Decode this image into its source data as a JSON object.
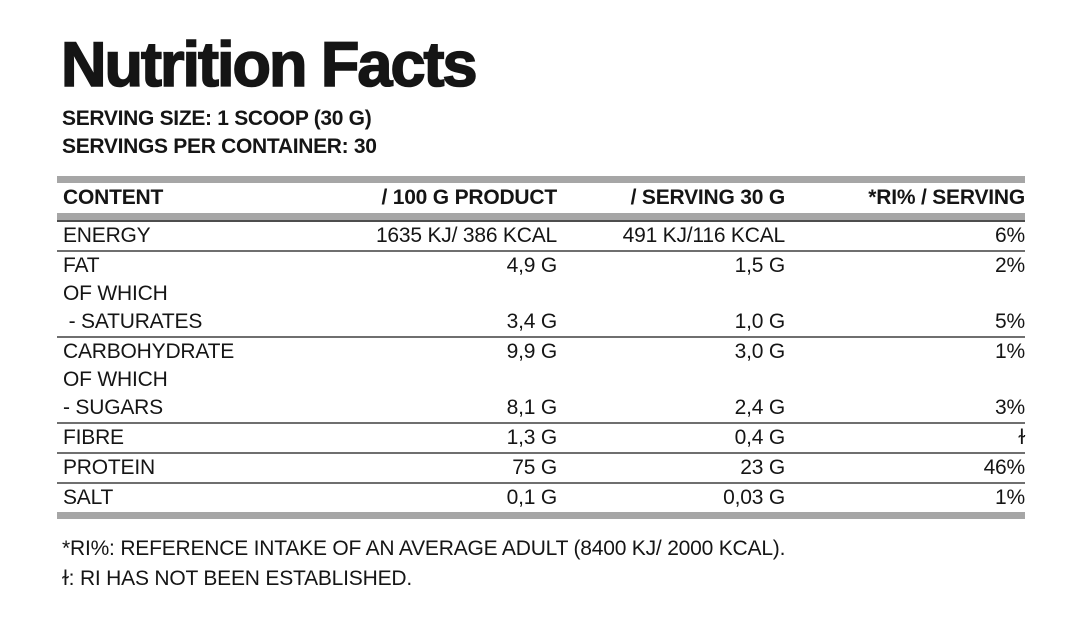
{
  "title": "Nutrition Facts",
  "serving_info": {
    "serving_size": "SERVING SIZE: 1 SCOOP (30 G)",
    "servings_per_container": "SERVINGS PER CONTAINER: 30"
  },
  "table": {
    "headers": {
      "content": "CONTENT",
      "per_100g": "/ 100 G PRODUCT",
      "per_serving": "/ SERVING 30 G",
      "ri_percent": "*RI% / SERVING"
    },
    "rows": [
      {
        "content": "ENERGY",
        "per_100g": "1635 KJ/ 386 KCAL",
        "per_serving": "491 KJ/116 KCAL",
        "ri_percent": "6%",
        "divider_below": true
      },
      {
        "content": "FAT",
        "per_100g": "4,9 G",
        "per_serving": "1,5 G",
        "ri_percent": "2%",
        "divider_below": false
      },
      {
        "content": "OF WHICH",
        "per_100g": "",
        "per_serving": "",
        "ri_percent": "",
        "divider_below": false
      },
      {
        "content": " - SATURATES",
        "per_100g": "3,4 G",
        "per_serving": "1,0 G",
        "ri_percent": "5%",
        "divider_below": true
      },
      {
        "content": "CARBOHYDRATE",
        "per_100g": "9,9 G",
        "per_serving": "3,0 G",
        "ri_percent": "1%",
        "divider_below": false
      },
      {
        "content": "OF WHICH",
        "per_100g": "",
        "per_serving": "",
        "ri_percent": "",
        "divider_below": false
      },
      {
        "content": "- SUGARS",
        "per_100g": "8,1 G",
        "per_serving": "2,4 G",
        "ri_percent": "3%",
        "divider_below": true
      },
      {
        "content": "FIBRE",
        "per_100g": "1,3 G",
        "per_serving": "0,4 G",
        "ri_percent": "ɫ",
        "divider_below": true
      },
      {
        "content": "PROTEIN",
        "per_100g": "75 G",
        "per_serving": "23 G",
        "ri_percent": "46%",
        "divider_below": true
      },
      {
        "content": "SALT",
        "per_100g": "0,1 G",
        "per_serving": "0,03 G",
        "ri_percent": "1%",
        "divider_below": false
      }
    ]
  },
  "footnotes": {
    "ri_definition": "*RI%: REFERENCE INTAKE OF AN AVERAGE ADULT (8400 KJ/ 2000 KCAL).",
    "ri_not_established": "ɫ: RI HAS NOT BEEN ESTABLISHED."
  },
  "colors": {
    "background": "#ffffff",
    "text": "#151515",
    "thick_bar_gray": "#a6a6a6",
    "thin_divider_gray": "#6f6f6f",
    "header_underline_gray": "#4d4d4d"
  }
}
